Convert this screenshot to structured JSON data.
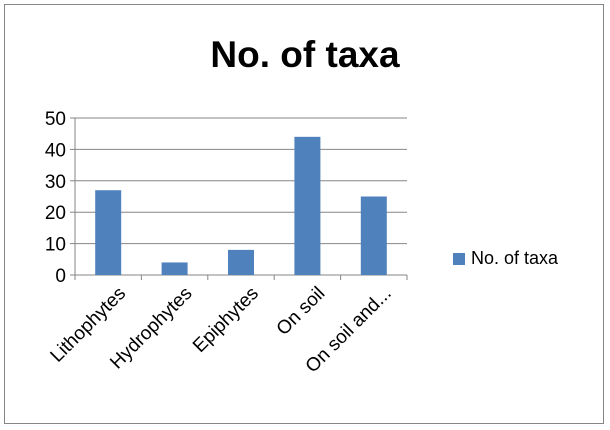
{
  "chart_data": {
    "type": "bar",
    "title": "No. of taxa",
    "categories": [
      "Lithophytes",
      "Hydrophytes",
      "Epiphytes",
      "On soil",
      "On soil and..."
    ],
    "series": [
      {
        "name": "No. of taxa",
        "values": [
          27,
          4,
          8,
          44,
          25
        ],
        "color": "#4f81bd"
      }
    ],
    "ylim": [
      0,
      50
    ],
    "yticks": [
      0,
      10,
      20,
      30,
      40,
      50
    ],
    "grid": true,
    "legend": "right",
    "xlabel": "",
    "ylabel": ""
  }
}
